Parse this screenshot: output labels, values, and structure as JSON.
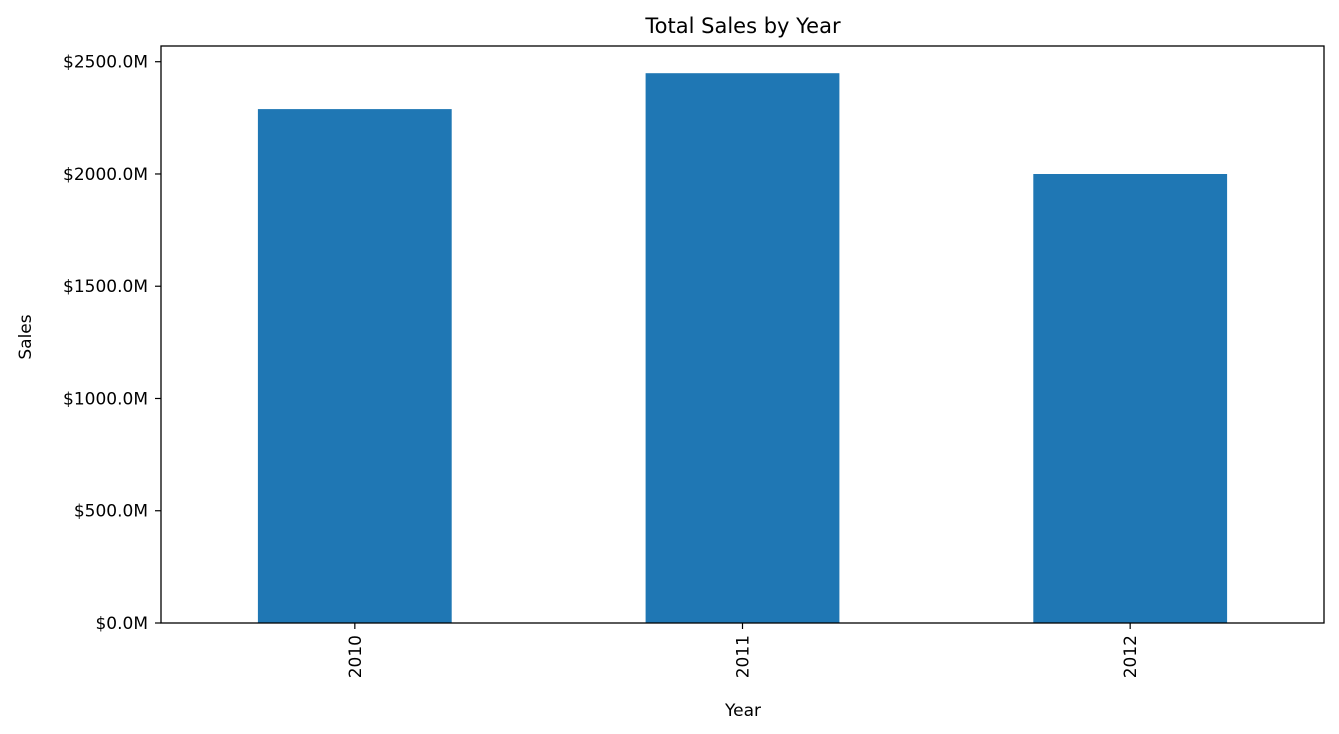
{
  "chart_data": {
    "type": "bar",
    "title": "Total Sales by Year",
    "xlabel": "Year",
    "ylabel": "Sales",
    "categories": [
      "2010",
      "2011",
      "2012"
    ],
    "values": [
      2289,
      2449,
      2000
    ],
    "value_unit": "$M",
    "ylim": [
      0,
      2570
    ],
    "yticks": [
      0,
      500,
      1000,
      1500,
      2000,
      2500
    ],
    "ytick_labels": [
      "$0.0M",
      "$500.0M",
      "$1000.0M",
      "$1500.0M",
      "$2000.0M",
      "$2500.0M"
    ],
    "bar_color": "#1f77b4",
    "grid": false,
    "legend": "none"
  }
}
